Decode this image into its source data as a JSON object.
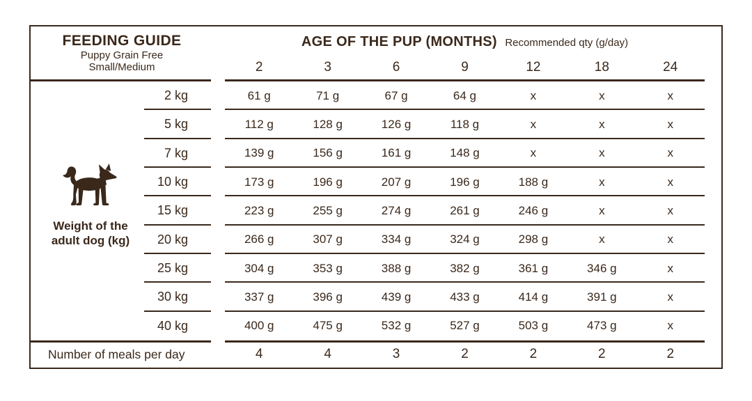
{
  "colors": {
    "ink": "#3A281B",
    "background": "#FFFFFF"
  },
  "table": {
    "title": "FEEDING GUIDE",
    "subtitle_line1": "Puppy Grain Free",
    "subtitle_line2": "Small/Medium",
    "age_header": "AGE OF THE PUP (MONTHS)",
    "age_subheader": "Recommended qty (g/day)",
    "columns": [
      "2",
      "3",
      "6",
      "9",
      "12",
      "18",
      "24"
    ],
    "axis_label_line1": "Weight of the",
    "axis_label_line2": "adult dog (kg)",
    "axis_icon": "dog-icon",
    "rows": [
      {
        "weight": "2 kg",
        "values": [
          "61 g",
          "71 g",
          "67 g",
          "64 g",
          "x",
          "x",
          "x"
        ]
      },
      {
        "weight": "5 kg",
        "values": [
          "112 g",
          "128 g",
          "126 g",
          "118 g",
          "x",
          "x",
          "x"
        ]
      },
      {
        "weight": "7 kg",
        "values": [
          "139 g",
          "156 g",
          "161 g",
          "148 g",
          "x",
          "x",
          "x"
        ]
      },
      {
        "weight": "10 kg",
        "values": [
          "173 g",
          "196 g",
          "207 g",
          "196 g",
          "188 g",
          "x",
          "x"
        ]
      },
      {
        "weight": "15 kg",
        "values": [
          "223 g",
          "255 g",
          "274 g",
          "261 g",
          "246 g",
          "x",
          "x"
        ]
      },
      {
        "weight": "20 kg",
        "values": [
          "266 g",
          "307 g",
          "334 g",
          "324 g",
          "298 g",
          "x",
          "x"
        ]
      },
      {
        "weight": "25 kg",
        "values": [
          "304 g",
          "353 g",
          "388 g",
          "382 g",
          "361 g",
          "346 g",
          "x"
        ]
      },
      {
        "weight": "30 kg",
        "values": [
          "337 g",
          "396 g",
          "439 g",
          "433 g",
          "414 g",
          "391 g",
          "x"
        ]
      },
      {
        "weight": "40 kg",
        "values": [
          "400 g",
          "475 g",
          "532 g",
          "527 g",
          "503 g",
          "473 g",
          "x"
        ]
      }
    ],
    "meals": {
      "label": "Number of meals per day",
      "values": [
        "4",
        "4",
        "3",
        "2",
        "2",
        "2",
        "2"
      ]
    }
  },
  "chart_data": {
    "type": "table",
    "title": "FEEDING GUIDE",
    "subtitle": "Puppy Grain Free Small/Medium",
    "column_axis_label": "AGE OF THE PUP (MONTHS)",
    "unit_note": "Recommended qty (g/day)",
    "columns_months": [
      2,
      3,
      6,
      9,
      12,
      18,
      24
    ],
    "row_axis_label": "Weight of the adult dog (kg)",
    "rows": [
      {
        "weight_kg": 2,
        "qty_g_per_day": [
          61,
          71,
          67,
          64,
          null,
          null,
          null
        ]
      },
      {
        "weight_kg": 5,
        "qty_g_per_day": [
          112,
          128,
          126,
          118,
          null,
          null,
          null
        ]
      },
      {
        "weight_kg": 7,
        "qty_g_per_day": [
          139,
          156,
          161,
          148,
          null,
          null,
          null
        ]
      },
      {
        "weight_kg": 10,
        "qty_g_per_day": [
          173,
          196,
          207,
          196,
          188,
          null,
          null
        ]
      },
      {
        "weight_kg": 15,
        "qty_g_per_day": [
          223,
          255,
          274,
          261,
          246,
          null,
          null
        ]
      },
      {
        "weight_kg": 20,
        "qty_g_per_day": [
          266,
          307,
          334,
          324,
          298,
          null,
          null
        ]
      },
      {
        "weight_kg": 25,
        "qty_g_per_day": [
          304,
          353,
          388,
          382,
          361,
          346,
          null
        ]
      },
      {
        "weight_kg": 30,
        "qty_g_per_day": [
          337,
          396,
          439,
          433,
          414,
          391,
          null
        ]
      },
      {
        "weight_kg": 40,
        "qty_g_per_day": [
          400,
          475,
          532,
          527,
          503,
          473,
          null
        ]
      }
    ],
    "not_applicable_marker": "x",
    "meals_per_day": {
      "label": "Number of meals per day",
      "values": [
        4,
        4,
        3,
        2,
        2,
        2,
        2
      ]
    }
  }
}
